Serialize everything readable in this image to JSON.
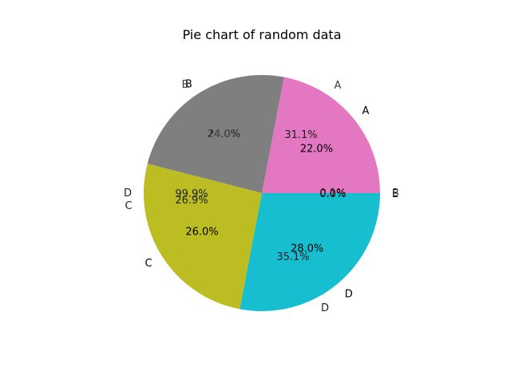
{
  "chart_data": {
    "type": "pie",
    "title": "Pie chart of random data",
    "slices": [
      {
        "label": "A",
        "value": 22.0,
        "color": "#e377c2"
      },
      {
        "label": "B",
        "value": 24.0,
        "color": "#7f7f7f"
      },
      {
        "label": "C",
        "value": 26.0,
        "color": "#bcbd22"
      },
      {
        "label": "D",
        "value": 28.0,
        "color": "#17becf"
      },
      {
        "label": "E",
        "value": 0.0,
        "color": "#17becf"
      }
    ],
    "overlay_texts": [
      {
        "text": "A",
        "color": "#404040"
      },
      {
        "text": "31.1%",
        "color": "#222222"
      },
      {
        "text": "B",
        "color": "#404040"
      },
      {
        "text": "14.0%",
        "color": "#555555"
      },
      {
        "text": "D",
        "color": "#222222"
      },
      {
        "text": "C",
        "color": "#222222"
      },
      {
        "text": "99.9%",
        "color": "#222222"
      },
      {
        "text": "26.9%",
        "color": "#222222"
      },
      {
        "text": "35.1%",
        "color": "#222222"
      },
      {
        "text": "D",
        "color": "#222222"
      },
      {
        "text": "0.1%",
        "color": "#222222"
      },
      {
        "text": "B",
        "color": "#404040"
      }
    ],
    "start_angle": 0,
    "direction": "counterclockwise"
  }
}
